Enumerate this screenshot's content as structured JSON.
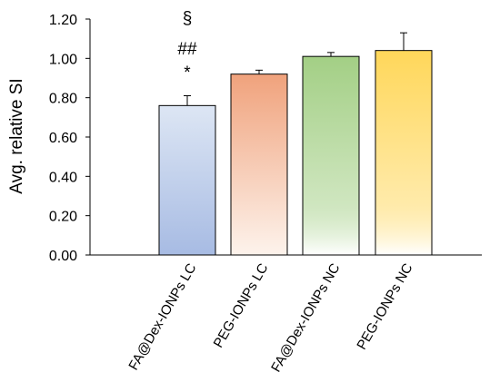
{
  "chart_data": {
    "type": "bar",
    "title": "",
    "xlabel": "",
    "ylabel": "Avg. relative SI",
    "ylim": [
      0,
      1.2
    ],
    "y_ticks": [
      "0.00",
      "0.20",
      "0.40",
      "0.60",
      "0.80",
      "1.00",
      "1.20"
    ],
    "grid": false,
    "legend": "none",
    "categories": [
      "FA@Dex-IONPs LC",
      "PEG-IONPs LC",
      "FA@Dex-IONPs NC",
      "PEG-IONPs NC"
    ],
    "values": [
      0.76,
      0.92,
      1.01,
      1.04
    ],
    "error": [
      0.05,
      0.02,
      0.02,
      0.09
    ],
    "annotations": [
      {
        "category": "FA@Dex-IONPs LC",
        "lines": [
          "§",
          "##",
          "*"
        ]
      }
    ],
    "bar_gradients": [
      {
        "top": "#dde6f4",
        "bottom": "#a7bbe3"
      },
      {
        "top": "#f0a27c",
        "bottom": "#fdf3ec"
      },
      {
        "top": "#a3cf85",
        "bottom": "#ffffff"
      },
      {
        "top": "#ffd75a",
        "bottom": "#ffffff"
      }
    ]
  }
}
